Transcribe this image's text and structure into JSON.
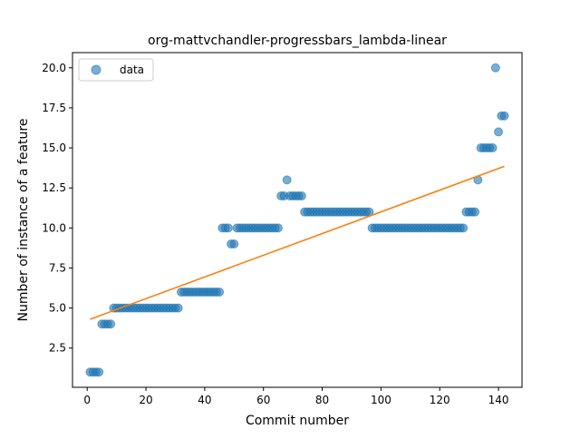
{
  "chart_data": {
    "type": "scatter",
    "title": "org-mattvchandler-progressbars_lambda-linear",
    "xlabel": "Commit number",
    "ylabel": "Number of instance of a feature",
    "xlim": [
      -5,
      148
    ],
    "ylim": [
      0.05,
      20.95
    ],
    "xticks": [
      0,
      20,
      40,
      60,
      80,
      100,
      120,
      140
    ],
    "yticks": [
      2.5,
      5.0,
      7.5,
      10.0,
      12.5,
      15.0,
      17.5,
      20.0
    ],
    "ytick_labels": [
      "2.5",
      "5.0",
      "7.5",
      "10.0",
      "12.5",
      "15.0",
      "17.5",
      "20.0"
    ],
    "legend": {
      "position": "top-left",
      "label": "data"
    },
    "grid": false,
    "colors": {
      "points": "#1f77b4",
      "fit": "#ff7f0e"
    },
    "series": [
      {
        "name": "data",
        "kind": "points",
        "x": [
          1,
          2,
          3,
          4,
          5,
          6,
          7,
          8,
          9,
          10,
          11,
          12,
          13,
          14,
          15,
          16,
          17,
          18,
          19,
          20,
          21,
          22,
          23,
          24,
          25,
          26,
          27,
          28,
          29,
          30,
          31,
          32,
          33,
          34,
          35,
          36,
          37,
          38,
          39,
          40,
          41,
          42,
          43,
          44,
          45,
          46,
          47,
          48,
          49,
          50,
          51,
          52,
          53,
          54,
          55,
          56,
          57,
          58,
          59,
          60,
          61,
          62,
          63,
          64,
          65,
          66,
          67,
          68,
          69,
          70,
          71,
          72,
          73,
          74,
          75,
          76,
          77,
          78,
          79,
          80,
          81,
          82,
          83,
          84,
          85,
          86,
          87,
          88,
          89,
          90,
          91,
          92,
          93,
          94,
          95,
          96,
          97,
          98,
          99,
          100,
          101,
          102,
          103,
          104,
          105,
          106,
          107,
          108,
          109,
          110,
          111,
          112,
          113,
          114,
          115,
          116,
          117,
          118,
          119,
          120,
          121,
          122,
          123,
          124,
          125,
          126,
          127,
          128,
          129,
          130,
          131,
          132,
          133,
          134,
          135,
          136,
          137,
          138,
          139,
          140,
          141,
          142
        ],
        "y": [
          1,
          1,
          1,
          1,
          4,
          4,
          4,
          4,
          5,
          5,
          5,
          5,
          5,
          5,
          5,
          5,
          5,
          5,
          5,
          5,
          5,
          5,
          5,
          5,
          5,
          5,
          5,
          5,
          5,
          5,
          5,
          6,
          6,
          6,
          6,
          6,
          6,
          6,
          6,
          6,
          6,
          6,
          6,
          6,
          6,
          10,
          10,
          10,
          9,
          9,
          10,
          10,
          10,
          10,
          10,
          10,
          10,
          10,
          10,
          10,
          10,
          10,
          10,
          10,
          10,
          12,
          12,
          13,
          12,
          12,
          12,
          12,
          12,
          11,
          11,
          11,
          11,
          11,
          11,
          11,
          11,
          11,
          11,
          11,
          11,
          11,
          11,
          11,
          11,
          11,
          11,
          11,
          11,
          11,
          11,
          11,
          10,
          10,
          10,
          10,
          10,
          10,
          10,
          10,
          10,
          10,
          10,
          10,
          10,
          10,
          10,
          10,
          10,
          10,
          10,
          10,
          10,
          10,
          10,
          10,
          10,
          10,
          10,
          10,
          10,
          10,
          10,
          10,
          11,
          11,
          11,
          11,
          13,
          15,
          15,
          15,
          15,
          15,
          20,
          16,
          17,
          17
        ]
      },
      {
        "name": "",
        "kind": "line",
        "x": [
          1,
          142
        ],
        "y": [
          4.3,
          13.85
        ]
      }
    ]
  }
}
